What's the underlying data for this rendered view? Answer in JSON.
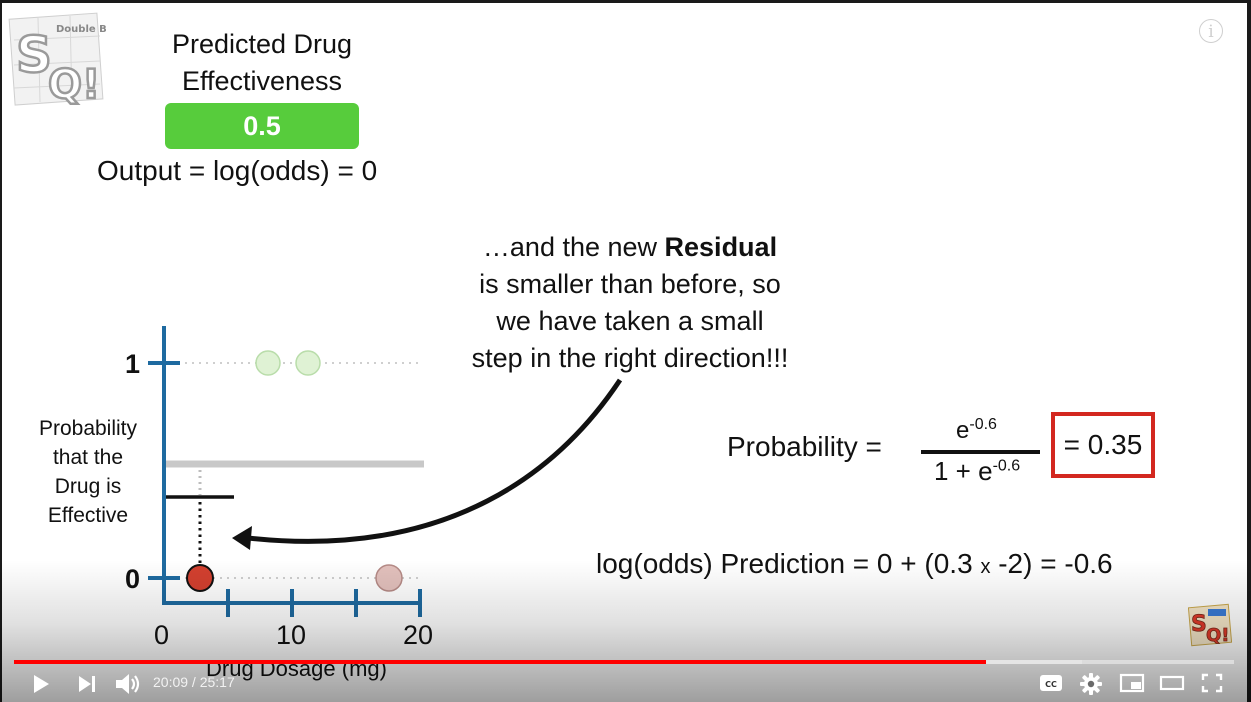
{
  "header": {
    "title_line1": "Predicted Drug",
    "title_line2": "Effectiveness",
    "value": "0.5",
    "output_text": "Output = log(odds) = 0",
    "logo_text": "Double BAM!!!"
  },
  "callout": {
    "line1_prefix": "…and the new ",
    "line1_bold": "Residual",
    "line2": "is smaller than before, so",
    "line3": "we have taken a small",
    "line4": "step in the right direction!!!"
  },
  "chart": {
    "y_label_lines": [
      "Probability",
      "that the",
      "Drug is",
      "Effective"
    ],
    "y_tick_1": "1",
    "y_tick_0": "0",
    "x_ticks": [
      "0",
      "10",
      "20"
    ],
    "x_label": "Drug Dosage (mg)"
  },
  "chart_data": {
    "type": "scatter",
    "xlabel": "Drug Dosage (mg)",
    "ylabel": "Probability that the Drug is Effective",
    "x_range": [
      0,
      20
    ],
    "y_range": [
      0,
      1
    ],
    "x_tick_labels": [
      "0",
      "10",
      "20"
    ],
    "y_tick_labels": [
      "0",
      "1"
    ],
    "points": [
      {
        "x": 8.5,
        "y": 1,
        "color": "#d8f0cc",
        "highlighted": false
      },
      {
        "x": 11.5,
        "y": 1,
        "color": "#d8f0cc",
        "highlighted": false
      },
      {
        "x": 2.8,
        "y": 0,
        "color": "#d3402f",
        "highlighted": true
      },
      {
        "x": 17.5,
        "y": 0,
        "color": "#e8c4c0",
        "highlighted": false
      }
    ],
    "reference_lines": [
      {
        "y": 0.5,
        "color": "#c8c8c8"
      },
      {
        "y": 0.38,
        "color": "#111111"
      }
    ]
  },
  "formula": {
    "prob_label": "Probability =",
    "num_base": "e",
    "num_exp": "-0.6",
    "den_prefix": "1 + e",
    "den_exp": "-0.6",
    "result": "= 0.35",
    "logodds_prefix": "log(odds) Prediction = 0 + (0.3 ",
    "logodds_x": "x",
    "logodds_suffix": " -2) = -0.6"
  },
  "player": {
    "time": "20:09 / 25:17",
    "progress_fraction": 0.797,
    "buffer_fraction": 0.875,
    "progress_color": "#ff0000",
    "cc_label": "CC"
  }
}
